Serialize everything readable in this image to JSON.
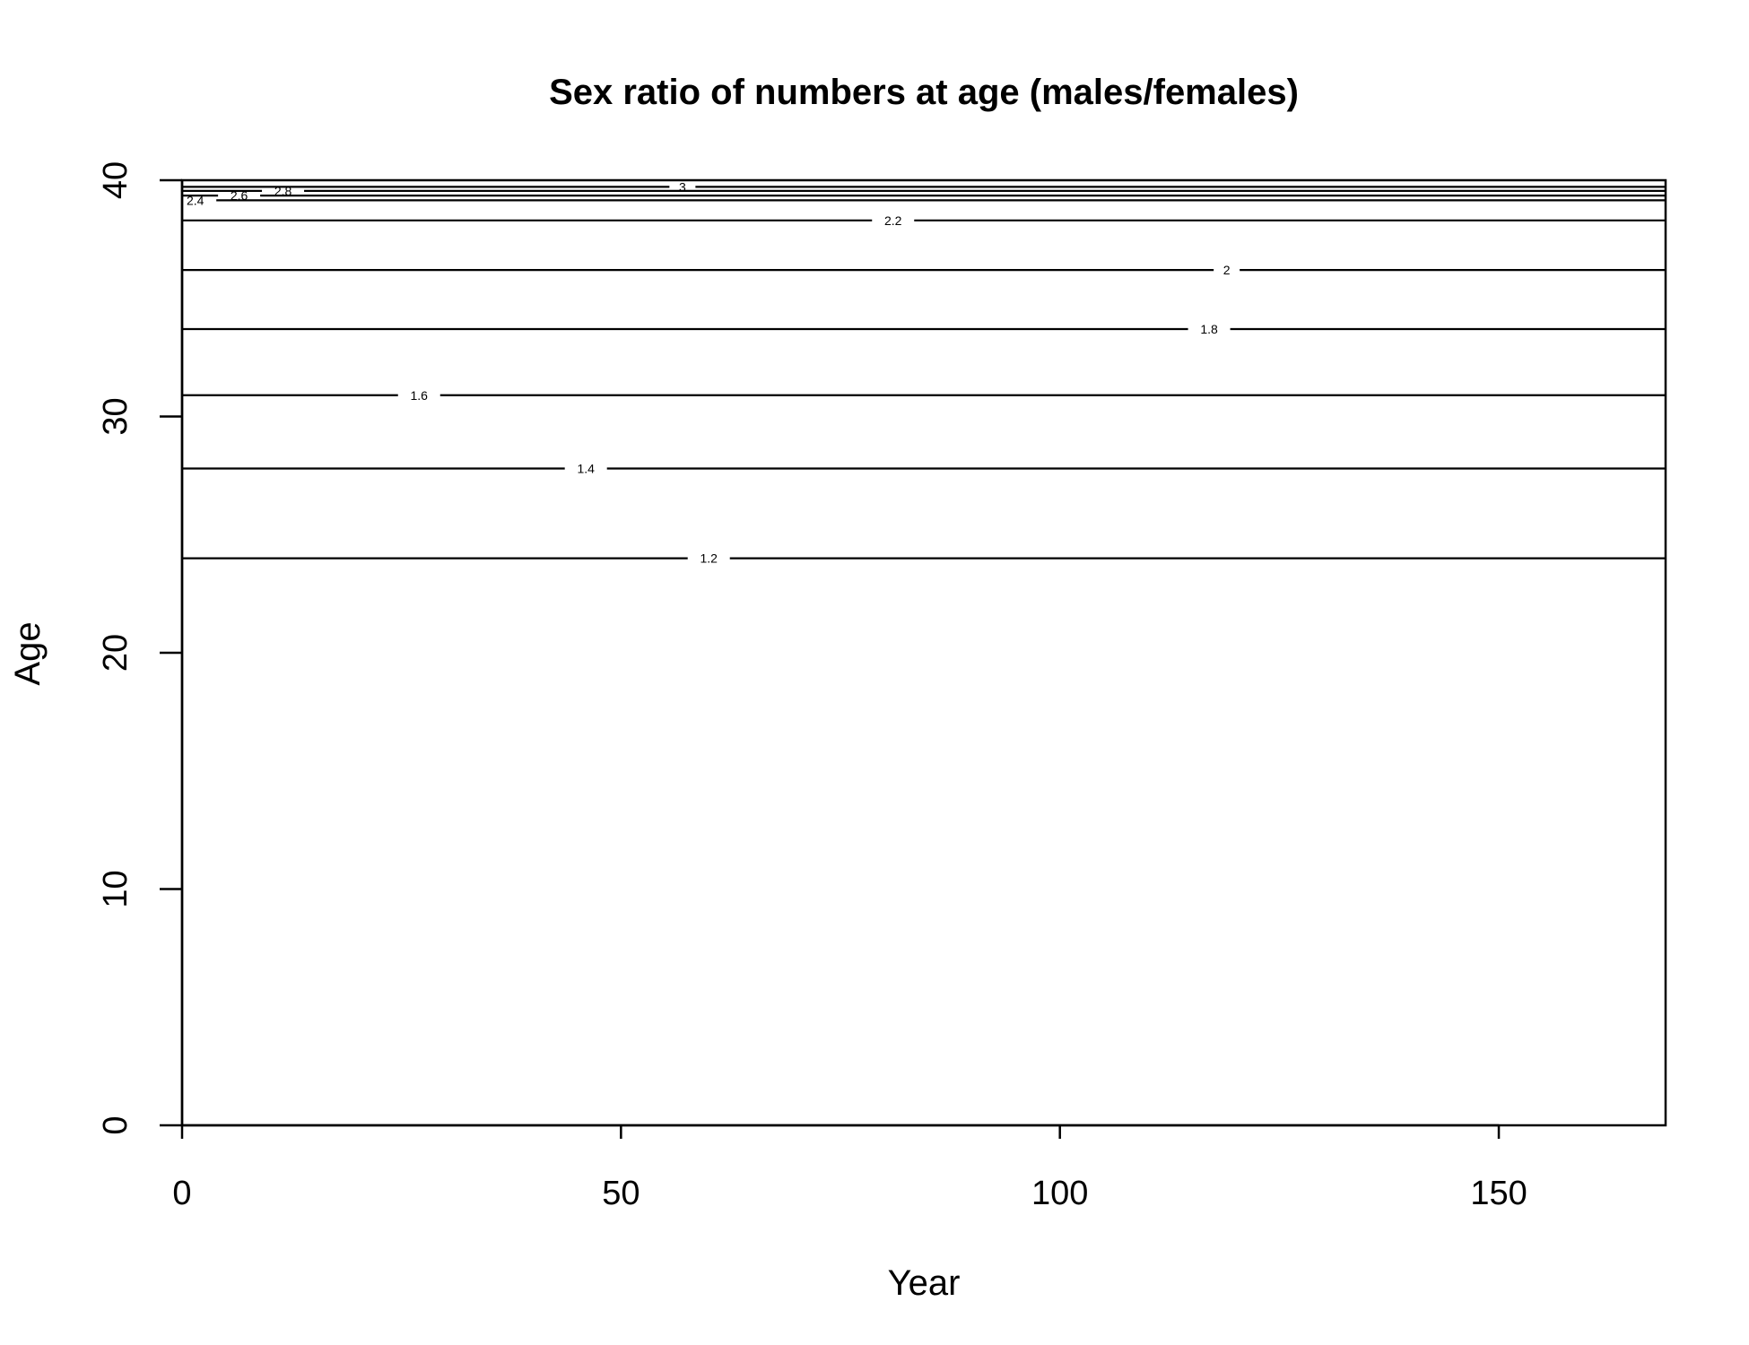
{
  "chart_data": {
    "type": "contour",
    "title": "Sex ratio of numbers at age (males/females)",
    "xlabel": "Year",
    "ylabel": "Age",
    "xlim": [
      0,
      169
    ],
    "ylim": [
      0,
      40
    ],
    "xticks": [
      0,
      50,
      100,
      150
    ],
    "yticks": [
      0,
      10,
      20,
      30,
      40
    ],
    "grid": false,
    "contours": [
      {
        "level": 1.2,
        "label": "1.2",
        "age": 24.0,
        "label_year": 60
      },
      {
        "level": 1.4,
        "label": "1.4",
        "age": 27.8,
        "label_year": 46
      },
      {
        "level": 1.6,
        "label": "1.6",
        "age": 30.9,
        "label_year": 27
      },
      {
        "level": 1.8,
        "label": "1.8",
        "age": 33.7,
        "label_year": 117
      },
      {
        "level": 2.0,
        "label": "2",
        "age": 36.2,
        "label_year": 119
      },
      {
        "level": 2.2,
        "label": "2.2",
        "age": 38.3,
        "label_year": 81
      },
      {
        "level": 2.4,
        "label": "2.4",
        "age": 39.15,
        "label_year": 1.5
      },
      {
        "level": 2.6,
        "label": "2.6",
        "age": 39.35,
        "label_year": 6.5
      },
      {
        "level": 2.8,
        "label": "2.8",
        "age": 39.55,
        "label_year": 11.5
      },
      {
        "level": 3.0,
        "label": "3",
        "age": 39.72,
        "label_year": 57
      }
    ]
  }
}
